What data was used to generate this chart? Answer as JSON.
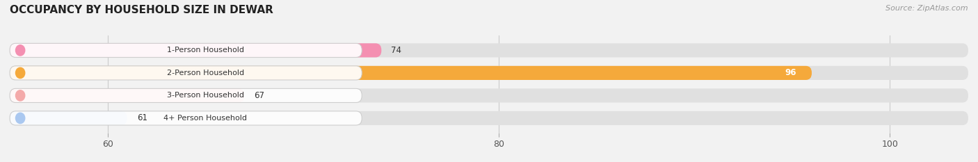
{
  "title": "OCCUPANCY BY HOUSEHOLD SIZE IN DEWAR",
  "source": "Source: ZipAtlas.com",
  "categories": [
    "1-Person Household",
    "2-Person Household",
    "3-Person Household",
    "4+ Person Household"
  ],
  "values": [
    74,
    96,
    67,
    61
  ],
  "bar_colors": [
    "#f48fb1",
    "#f5a93b",
    "#f4aaaa",
    "#aac8f0"
  ],
  "xlim": [
    55,
    104
  ],
  "xticks": [
    60,
    80,
    100
  ],
  "bar_height": 0.62,
  "background_color": "#f2f2f2",
  "bar_bg_color": "#e0e0e0",
  "value_label_inside": [
    false,
    true,
    false,
    false
  ],
  "label_colors": [
    "#f8c8d8",
    "#f5c070",
    "#f8c0c0",
    "#c8dff8"
  ]
}
